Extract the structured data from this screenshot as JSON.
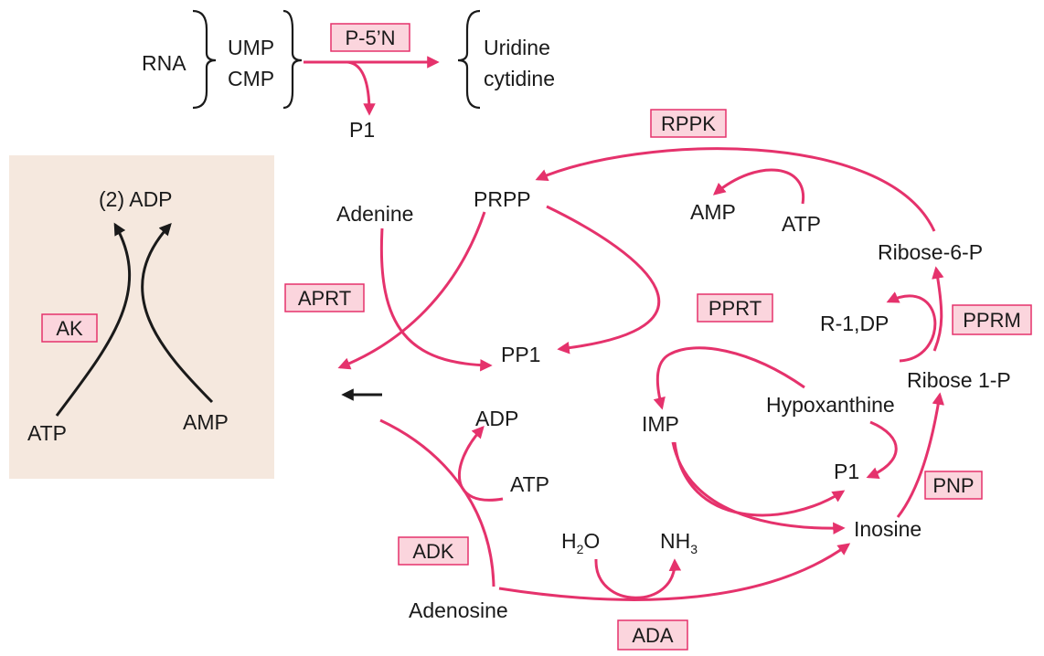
{
  "colors": {
    "pathway": "#e5326c",
    "enzyme_fill": "#fbd5dd",
    "panel": "#f5e8de",
    "ink": "#1a1a1a"
  },
  "metabolites": {
    "rna": "RNA",
    "ump": "UMP",
    "cmp": "CMP",
    "uridine": "Uridine",
    "cytidine": "cytidine",
    "p1_top": "P1",
    "two_adp": "(2) ADP",
    "atp_ak": "ATP",
    "amp_ak": "AMP",
    "adenine": "Adenine",
    "prpp": "PRPP",
    "amp_rppk": "AMP",
    "atp_rppk": "ATP",
    "ribose6p": "Ribose-6-P",
    "r1dp": "R-1,DP",
    "ribose1p": "Ribose 1-P",
    "pp1": "PP1",
    "hypoxanthine": "Hypoxanthine",
    "imp": "IMP",
    "adp_adk": "ADP",
    "atp_adk": "ATP",
    "p1_mid": "P1",
    "inosine": "Inosine",
    "h2o_main": "H",
    "h2o_sub": "2",
    "h2o_tail": "O",
    "nh3_main": "NH",
    "nh3_sub": "3",
    "adenosine": "Adenosine"
  },
  "enzymes": {
    "p5n": "P-5’N",
    "rppk": "RPPK",
    "ak": "AK",
    "aprt": "APRT",
    "pprt": "PPRT",
    "pprm": "PPRM",
    "pnp": "PNP",
    "adk": "ADK",
    "ada": "ADA"
  }
}
